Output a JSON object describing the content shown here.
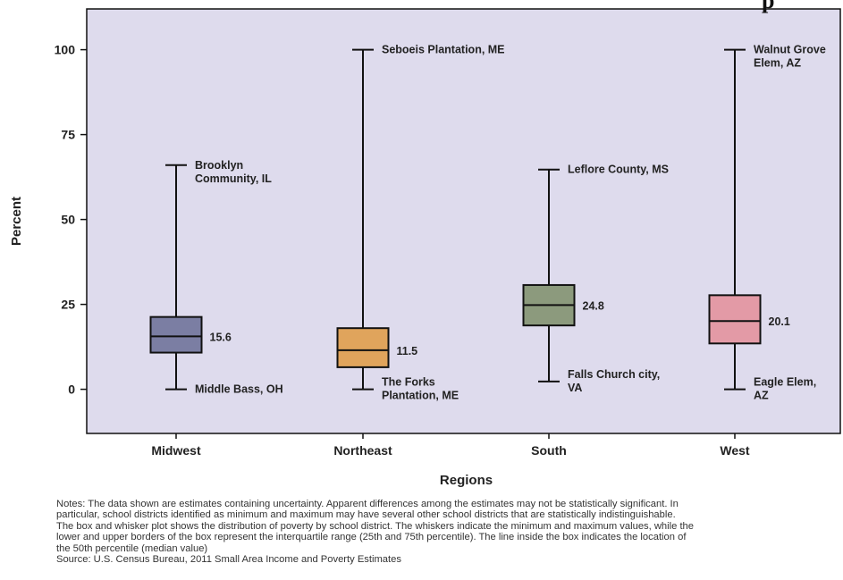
{
  "chart_data": {
    "type": "box",
    "title_fragment": "p",
    "xlabel": "Regions",
    "ylabel": "Percent",
    "ylim": [
      -13,
      112
    ],
    "yticks": [
      0,
      25,
      50,
      75,
      100
    ],
    "categories": [
      "Midwest",
      "Northeast",
      "South",
      "West"
    ],
    "boxes": [
      {
        "category": "Midwest",
        "min": 0,
        "q1": 10.8,
        "median": 15.6,
        "q3": 21.3,
        "max": 66,
        "median_label": "15.6",
        "max_label": [
          "Brooklyn",
          "Community, IL"
        ],
        "min_label": [
          "Middle Bass, OH"
        ],
        "color": "#7b7ea3"
      },
      {
        "category": "Northeast",
        "min": 0,
        "q1": 6.5,
        "median": 11.5,
        "q3": 18,
        "max": 100,
        "median_label": "11.5",
        "max_label": [
          "Seboeis Plantation, ME"
        ],
        "min_label": [
          "The Forks",
          "Plantation, ME"
        ],
        "color": "#e0a45c"
      },
      {
        "category": "South",
        "min": 2.3,
        "q1": 18.8,
        "median": 24.8,
        "q3": 30.7,
        "max": 64.7,
        "median_label": "24.8",
        "max_label": [
          "Leflore County, MS"
        ],
        "min_label": [
          "Falls Church city,",
          "VA"
        ],
        "color": "#8c9a7d"
      },
      {
        "category": "West",
        "min": 0,
        "q1": 13.5,
        "median": 20.1,
        "q3": 27.7,
        "max": 100,
        "median_label": "20.1",
        "max_label": [
          "Walnut Grove",
          "Elem, AZ"
        ],
        "min_label": [
          "Eagle Elem,",
          "AZ"
        ],
        "color": "#e39aa6"
      }
    ],
    "plot_background": "#dedbed",
    "grid": false,
    "legend": "none"
  },
  "notes": {
    "lines": [
      "Notes: The data shown are estimates containing uncertainty. Apparent differences among the estimates may not be statistically significant. In",
      "particular, school districts identified as minimum and maximum may have several other school districts that are statistically indistinguishable.",
      "The box and whisker plot shows the distribution of poverty by school district. The whiskers indicate the minimum and maximum values, while the",
      "lower and upper borders of the box represent the interquartile range (25th and 75th percentile). The line inside the box indicates the location of",
      "the 50th percentile (median value)",
      "Source: U.S. Census Bureau,  2011 Small Area Income and Poverty Estimates"
    ]
  }
}
